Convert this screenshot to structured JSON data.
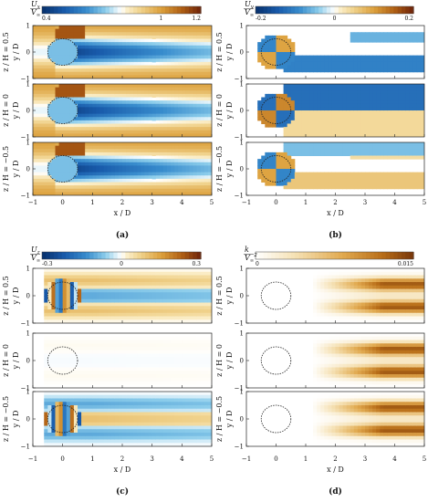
{
  "chart_data": [
    {
      "type": "heatmap",
      "panel_label": "(a)",
      "colorbar": {
        "label_top": "U",
        "label_top_sub": "x",
        "label_bottom": "V",
        "label_bottom_sub": "∞",
        "min": 0.4,
        "max": 1.2,
        "ticks": [
          "0.4",
          "1",
          "1.2"
        ],
        "tick_values": [
          0.4,
          1.0,
          1.2
        ],
        "colormap": "diverging-blue-white-brown"
      },
      "xlabel": "x / D",
      "xlim": [
        -1,
        5
      ],
      "xticks": [
        "-1",
        "0",
        "1",
        "2",
        "3",
        "4",
        "5"
      ],
      "ylabel": "y / D",
      "ylim": [
        -1,
        1
      ],
      "yticks": [
        "-1",
        "0",
        "1"
      ],
      "subplots": [
        {
          "zlabel": "z / H = 0.5"
        },
        {
          "zlabel": "z / H = 0"
        },
        {
          "zlabel": "z / H = −0.5"
        }
      ]
    },
    {
      "type": "heatmap",
      "panel_label": "(b)",
      "colorbar": {
        "label_top": "U",
        "label_top_sub": "y",
        "label_bottom": "V",
        "label_bottom_sub": "∞",
        "min": -0.2,
        "max": 0.2,
        "ticks": [
          "-0.2",
          "0",
          "0.2"
        ],
        "tick_values": [
          -0.2,
          0.0,
          0.2
        ],
        "colormap": "diverging-blue-white-brown"
      },
      "xlabel": "x / D",
      "xlim": [
        -1,
        5
      ],
      "xticks": [
        "-1",
        "0",
        "1",
        "2",
        "3",
        "4",
        "5"
      ],
      "ylabel": "y / D",
      "ylim": [
        -1,
        1
      ],
      "yticks": [
        "-1",
        "0",
        "1"
      ],
      "subplots": [
        {
          "zlabel": "z / H = 0.5"
        },
        {
          "zlabel": "z / H = 0"
        },
        {
          "zlabel": "z / H = −0.5"
        }
      ]
    },
    {
      "type": "heatmap",
      "panel_label": "(c)",
      "colorbar": {
        "label_top": "U",
        "label_top_sub": "z",
        "label_bottom": "V",
        "label_bottom_sub": "∞",
        "min": -0.3,
        "max": 0.3,
        "ticks": [
          "-0.3",
          "0",
          "0.3"
        ],
        "tick_values": [
          -0.3,
          0.0,
          0.3
        ],
        "colormap": "diverging-blue-white-brown"
      },
      "xlabel": "x / D",
      "xlim": [
        -1,
        5
      ],
      "xticks": [
        "-1",
        "0",
        "1",
        "2",
        "3",
        "4",
        "5"
      ],
      "ylabel": "y / D",
      "ylim": [
        -1,
        1
      ],
      "yticks": [
        "-1",
        "0",
        "1"
      ],
      "subplots": [
        {
          "zlabel": "z / H = 0.5"
        },
        {
          "zlabel": "z / H = 0"
        },
        {
          "zlabel": "z / H = −0.5"
        }
      ]
    },
    {
      "type": "heatmap",
      "panel_label": "(d)",
      "colorbar": {
        "label_top": "k",
        "label_top_sub": "",
        "label_bottom": "V",
        "label_bottom_sub": "∞",
        "label_bottom_sup": "2",
        "min": 0,
        "max": 0.015,
        "ticks": [
          "0",
          "0.015"
        ],
        "tick_values": [
          0,
          0.015
        ],
        "colormap": "sequential-white-brown"
      },
      "xlabel": "x / D",
      "xlim": [
        -1,
        5
      ],
      "xticks": [
        "-1",
        "0",
        "1",
        "2",
        "3",
        "4",
        "5"
      ],
      "ylabel": "y / D",
      "ylim": [
        -1,
        1
      ],
      "yticks": [
        "-1",
        "0",
        "1"
      ],
      "subplots": [
        {
          "zlabel": "z / H = 0.5"
        },
        {
          "zlabel": "z / H = 0"
        },
        {
          "zlabel": "z / H = −0.5"
        }
      ]
    }
  ]
}
